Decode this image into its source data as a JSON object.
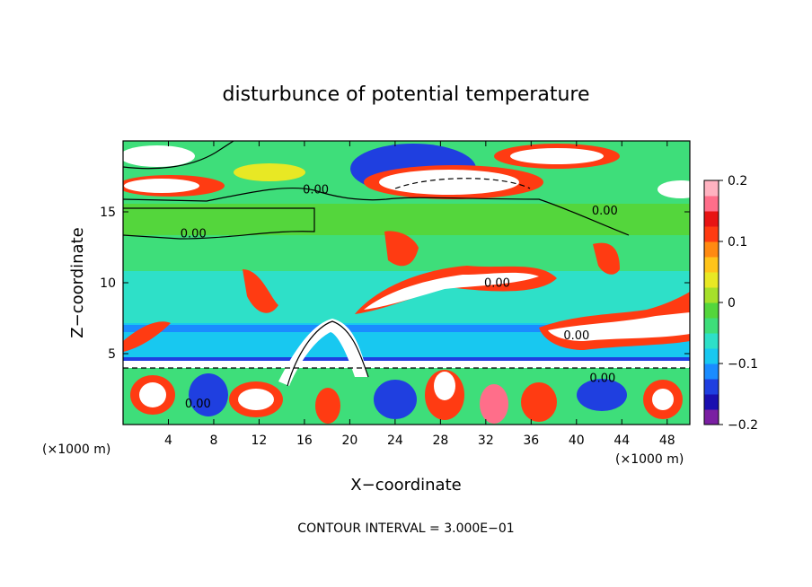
{
  "chart_data": {
    "type": "heatmap",
    "title": "disturbunce of potential temperature",
    "xlabel": "X−coordinate",
    "ylabel": "Z−coordinate",
    "x_unit_left": "(×1000 m)",
    "x_unit_right": "(×1000 m)",
    "footer": "CONTOUR INTERVAL = 3.000E−01",
    "xlim": [
      0,
      50
    ],
    "ylim": [
      0,
      20
    ],
    "x_ticks": [
      4,
      8,
      12,
      16,
      20,
      24,
      28,
      32,
      36,
      40,
      44,
      48
    ],
    "x_tick_labels": [
      "4",
      "8",
      "12",
      "16",
      "20",
      "24",
      "28",
      "32",
      "36",
      "40",
      "44",
      "48"
    ],
    "y_ticks": [
      5,
      10,
      15
    ],
    "y_tick_labels": [
      "5",
      "10",
      "15"
    ],
    "colorbar": {
      "range": [
        -0.2,
        0.2
      ],
      "ticks": [
        0.2,
        0.1,
        0,
        -0.1,
        -0.2
      ],
      "tick_labels": [
        "0.2",
        "0.1",
        "0",
        "−0.1",
        "−0.2"
      ],
      "colors": [
        "#7a1fa2",
        "#1a0fb0",
        "#1f3fe0",
        "#1a8cff",
        "#18c8f0",
        "#2ee0c8",
        "#3ede7a",
        "#54d63c",
        "#a6e02a",
        "#e8e824",
        "#ffc41a",
        "#ff8a12",
        "#ff3b12",
        "#e81414",
        "#ff6e8a",
        "#ffb2c0"
      ]
    },
    "contour_labels": [
      {
        "text": "0.00",
        "x": 17.0,
        "y": 16.3
      },
      {
        "text": "0.00",
        "x": 6.2,
        "y": 13.2
      },
      {
        "text": "0.00",
        "x": 42.5,
        "y": 14.8
      },
      {
        "text": "0.00",
        "x": 33.0,
        "y": 9.7
      },
      {
        "text": "0.00",
        "x": 40.0,
        "y": 6.0
      },
      {
        "text": "0.00",
        "x": 6.6,
        "y": 1.2
      },
      {
        "text": "0.00",
        "x": 42.3,
        "y": 3.0
      }
    ]
  }
}
